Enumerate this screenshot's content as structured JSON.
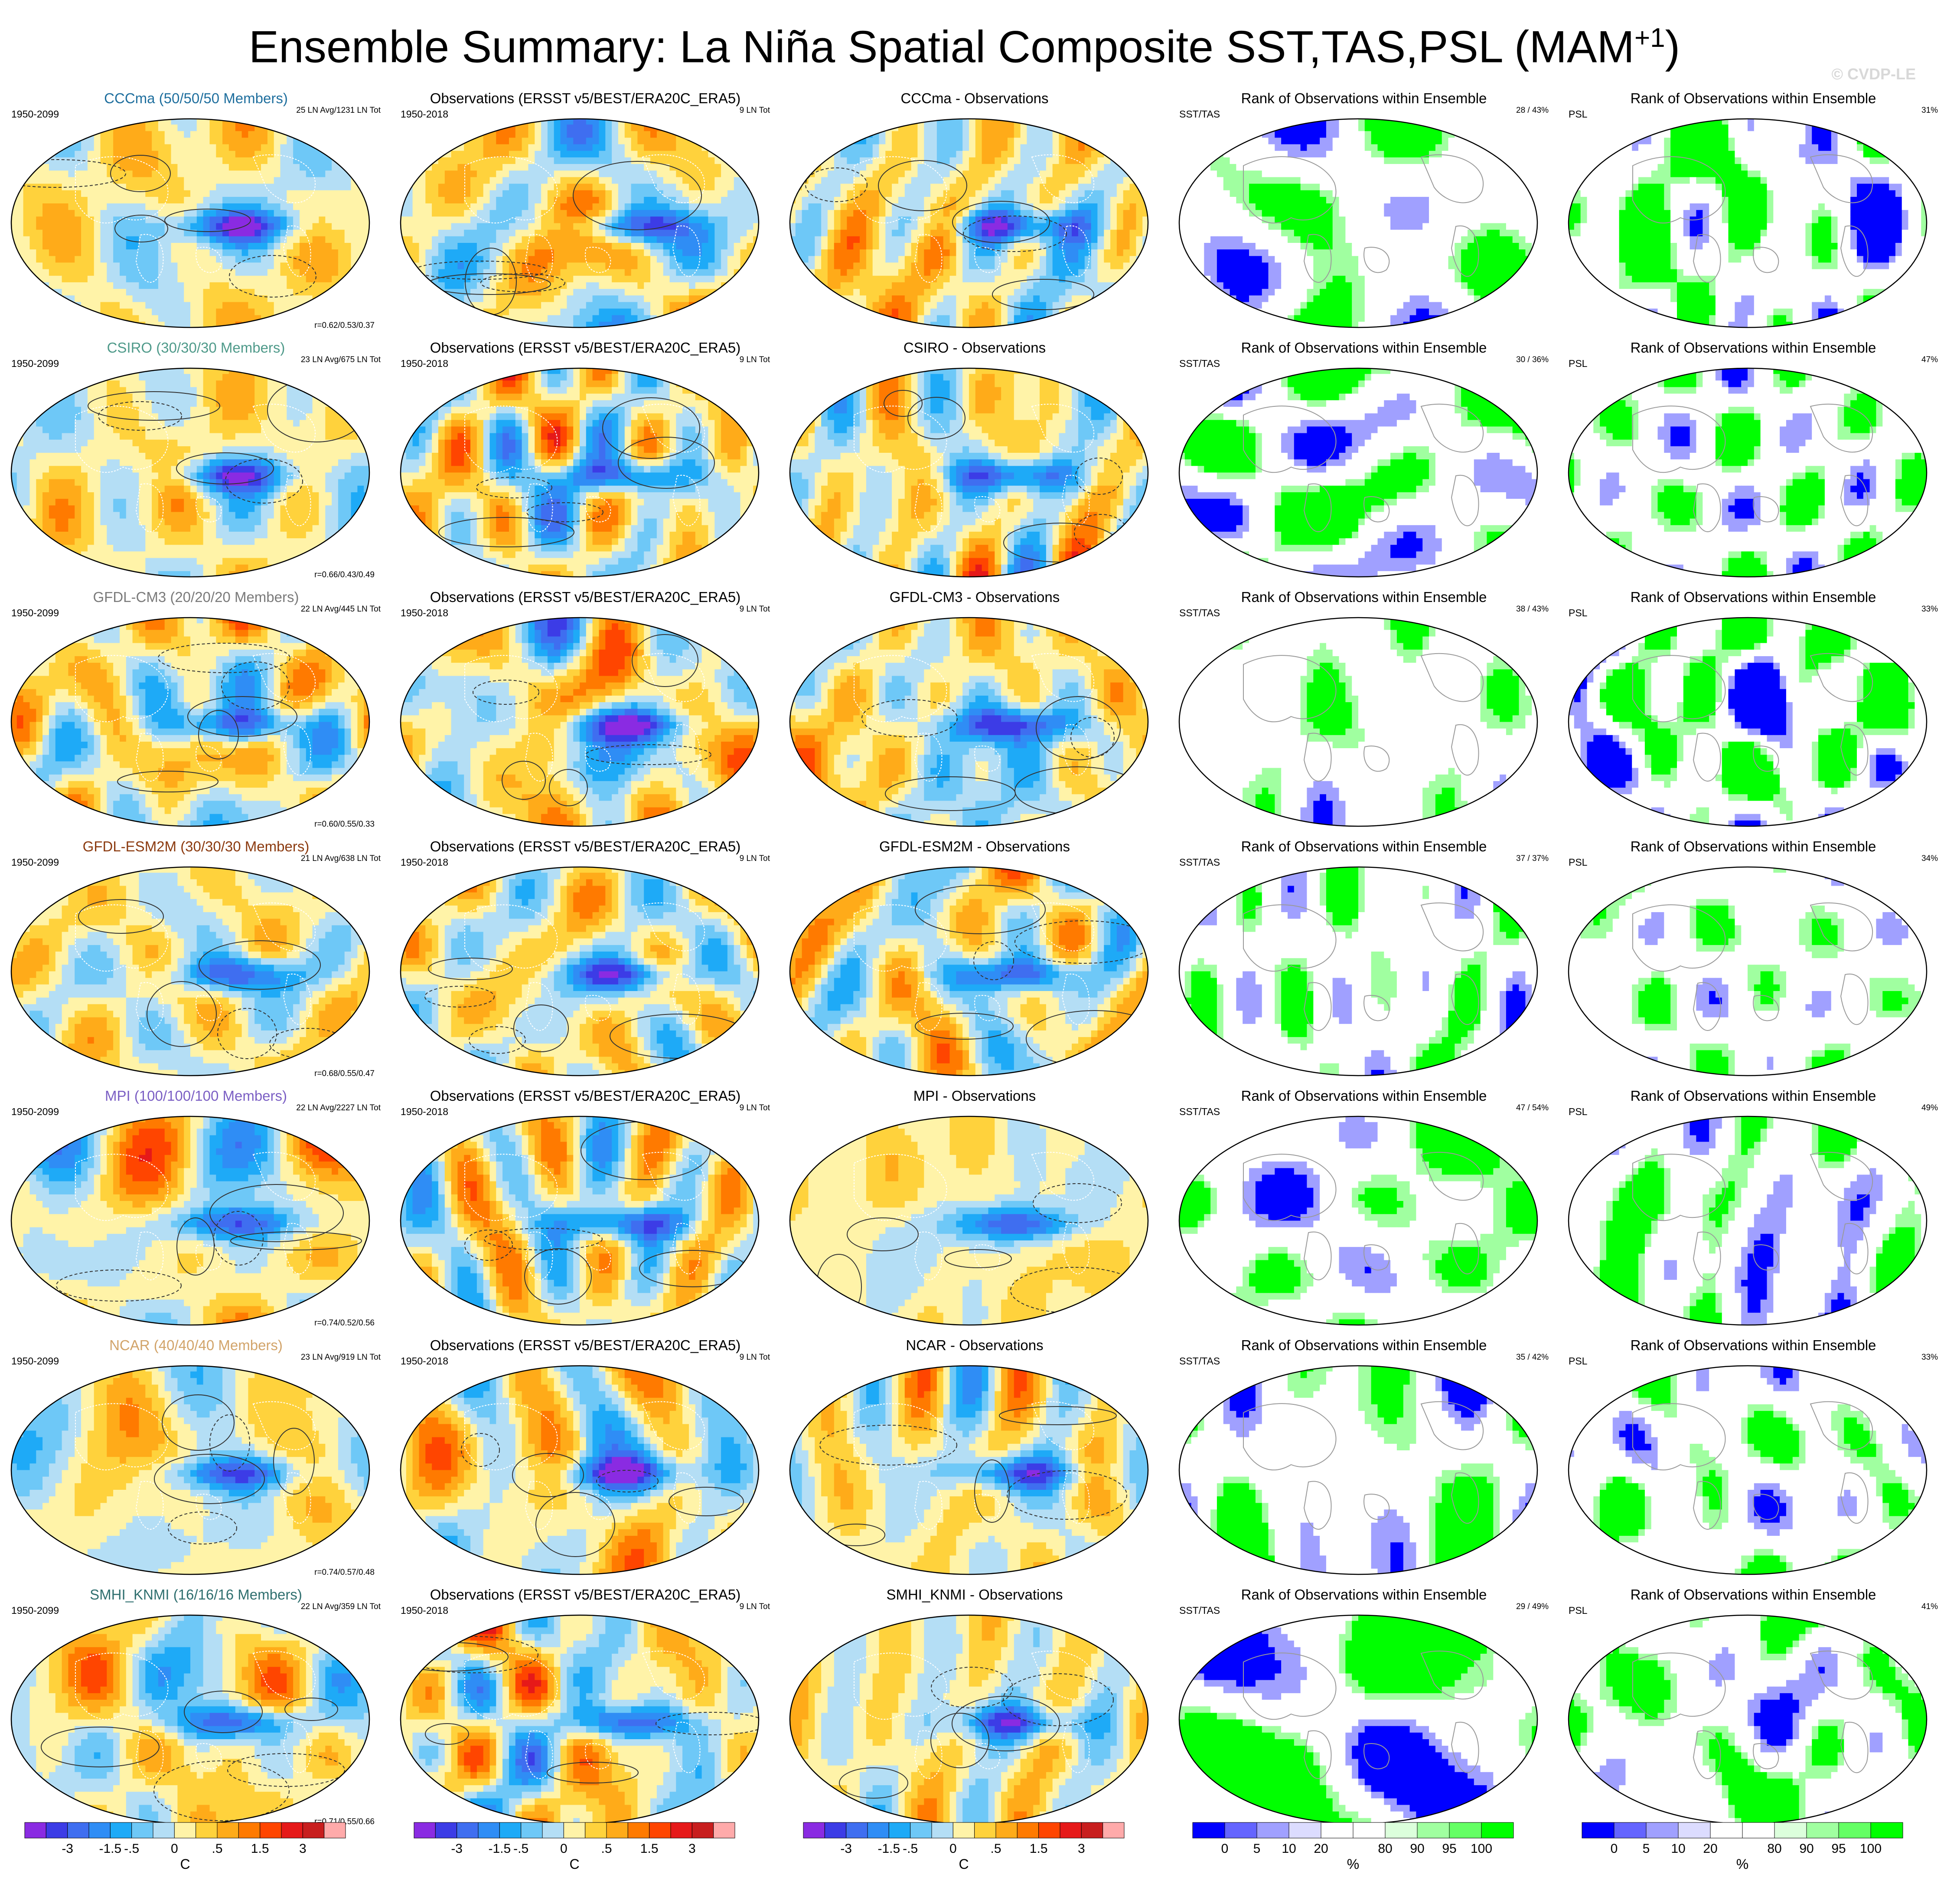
{
  "title": {
    "main": "Ensemble Summary: La Niña Spatial Composite SST,TAS,PSL (MAM",
    "sup": "+1",
    "close": ")"
  },
  "watermark": "© CVDP-LE",
  "colors": {
    "model_titles": [
      "#1f6f9e",
      "#4f9a8a",
      "#7a7a7a",
      "#8b3a0f",
      "#7b5fc4",
      "#d2a46a",
      "#2f6f6f"
    ],
    "temp_scale": [
      "#8a2be2",
      "#3c3ce6",
      "#3f6ef0",
      "#2f8df5",
      "#1eaaf7",
      "#6ec8f7",
      "#b4def5",
      "#fff3a8",
      "#ffd23c",
      "#ffab19",
      "#ff7a00",
      "#ff4500",
      "#e61919",
      "#c81e1e",
      "#ffaaaa"
    ],
    "rank_scale": [
      "#0000ff",
      "#6464ff",
      "#a0a0ff",
      "#dcdcff",
      "#ffffff",
      "#ffffff",
      "#dcffdc",
      "#a0ffa0",
      "#64ff64",
      "#00ff00"
    ]
  },
  "chart_data": {
    "type": "heatmap",
    "rows": [
      {
        "model": {
          "title": "CCCma (50/50/50 Members)",
          "years": "1950-2099",
          "events": "25 LN Avg/1231 LN Tot",
          "corr": "r=0.62/0.53/0.37"
        },
        "obs": {
          "title": "Observations (ERSST v5/BEST/ERA20C_ERA5)",
          "years": "1950-2018",
          "events": "9 LN Tot"
        },
        "diff": {
          "title": "CCCma - Observations"
        },
        "rank_sst": {
          "title": "Rank of Observations within Ensemble",
          "left": "SST/TAS",
          "right": "28 /  43%"
        },
        "rank_psl": {
          "title": "Rank of Observations within Ensemble",
          "left": "PSL",
          "right": "31%"
        }
      },
      {
        "model": {
          "title": "CSIRO (30/30/30 Members)",
          "years": "1950-2099",
          "events": "23 LN Avg/675 LN Tot",
          "corr": "r=0.66/0.43/0.49"
        },
        "obs": {
          "title": "Observations (ERSST v5/BEST/ERA20C_ERA5)",
          "years": "1950-2018",
          "events": "9 LN Tot"
        },
        "diff": {
          "title": "CSIRO - Observations"
        },
        "rank_sst": {
          "title": "Rank of Observations within Ensemble",
          "left": "SST/TAS",
          "right": "30 /  36%"
        },
        "rank_psl": {
          "title": "Rank of Observations within Ensemble",
          "left": "PSL",
          "right": "47%"
        }
      },
      {
        "model": {
          "title": "GFDL-CM3 (20/20/20 Members)",
          "years": "1950-2099",
          "events": "22 LN Avg/445 LN Tot",
          "corr": "r=0.60/0.55/0.33"
        },
        "obs": {
          "title": "Observations (ERSST v5/BEST/ERA20C_ERA5)",
          "years": "1950-2018",
          "events": "9 LN Tot"
        },
        "diff": {
          "title": "GFDL-CM3 - Observations"
        },
        "rank_sst": {
          "title": "Rank of Observations within Ensemble",
          "left": "SST/TAS",
          "right": "38 /  43%"
        },
        "rank_psl": {
          "title": "Rank of Observations within Ensemble",
          "left": "PSL",
          "right": "33%"
        }
      },
      {
        "model": {
          "title": "GFDL-ESM2M (30/30/30 Members)",
          "years": "1950-2099",
          "events": "21 LN Avg/638 LN Tot",
          "corr": "r=0.68/0.55/0.47"
        },
        "obs": {
          "title": "Observations (ERSST v5/BEST/ERA20C_ERA5)",
          "years": "1950-2018",
          "events": "9 LN Tot"
        },
        "diff": {
          "title": "GFDL-ESM2M - Observations"
        },
        "rank_sst": {
          "title": "Rank of Observations within Ensemble",
          "left": "SST/TAS",
          "right": "37 /  37%"
        },
        "rank_psl": {
          "title": "Rank of Observations within Ensemble",
          "left": "PSL",
          "right": "34%"
        }
      },
      {
        "model": {
          "title": "MPI (100/100/100 Members)",
          "years": "1950-2099",
          "events": "22 LN Avg/2227 LN Tot",
          "corr": "r=0.74/0.52/0.56"
        },
        "obs": {
          "title": "Observations (ERSST v5/BEST/ERA20C_ERA5)",
          "years": "1950-2018",
          "events": "9 LN Tot"
        },
        "diff": {
          "title": "MPI - Observations"
        },
        "rank_sst": {
          "title": "Rank of Observations within Ensemble",
          "left": "SST/TAS",
          "right": "47 /  54%"
        },
        "rank_psl": {
          "title": "Rank of Observations within Ensemble",
          "left": "PSL",
          "right": "49%"
        }
      },
      {
        "model": {
          "title": "NCAR (40/40/40 Members)",
          "years": "1950-2099",
          "events": "23 LN Avg/919 LN Tot",
          "corr": "r=0.74/0.57/0.48"
        },
        "obs": {
          "title": "Observations (ERSST v5/BEST/ERA20C_ERA5)",
          "years": "1950-2018",
          "events": "9 LN Tot"
        },
        "diff": {
          "title": "NCAR - Observations"
        },
        "rank_sst": {
          "title": "Rank of Observations within Ensemble",
          "left": "SST/TAS",
          "right": "35 /  42%"
        },
        "rank_psl": {
          "title": "Rank of Observations within Ensemble",
          "left": "PSL",
          "right": "33%"
        }
      },
      {
        "model": {
          "title": "SMHI_KNMI (16/16/16 Members)",
          "years": "1950-2099",
          "events": "22 LN Avg/359 LN Tot",
          "corr": "r=0.71/0.55/0.66"
        },
        "obs": {
          "title": "Observations (ERSST v5/BEST/ERA20C_ERA5)",
          "years": "1950-2018",
          "events": "9 LN Tot"
        },
        "diff": {
          "title": "SMHI_KNMI - Observations"
        },
        "rank_sst": {
          "title": "Rank of Observations within Ensemble",
          "left": "SST/TAS",
          "right": "29 /  49%"
        },
        "rank_psl": {
          "title": "Rank of Observations within Ensemble",
          "left": "PSL",
          "right": "41%"
        }
      }
    ],
    "colorbars": {
      "temperature": {
        "ticks": [
          "-3",
          "-1.5",
          "-.5",
          "0",
          ".5",
          "1.5",
          "3"
        ],
        "unit": "C"
      },
      "rank": {
        "ticks": [
          "0",
          "5",
          "10",
          "20",
          "80",
          "90",
          "95",
          "100"
        ],
        "unit": "%"
      }
    }
  }
}
